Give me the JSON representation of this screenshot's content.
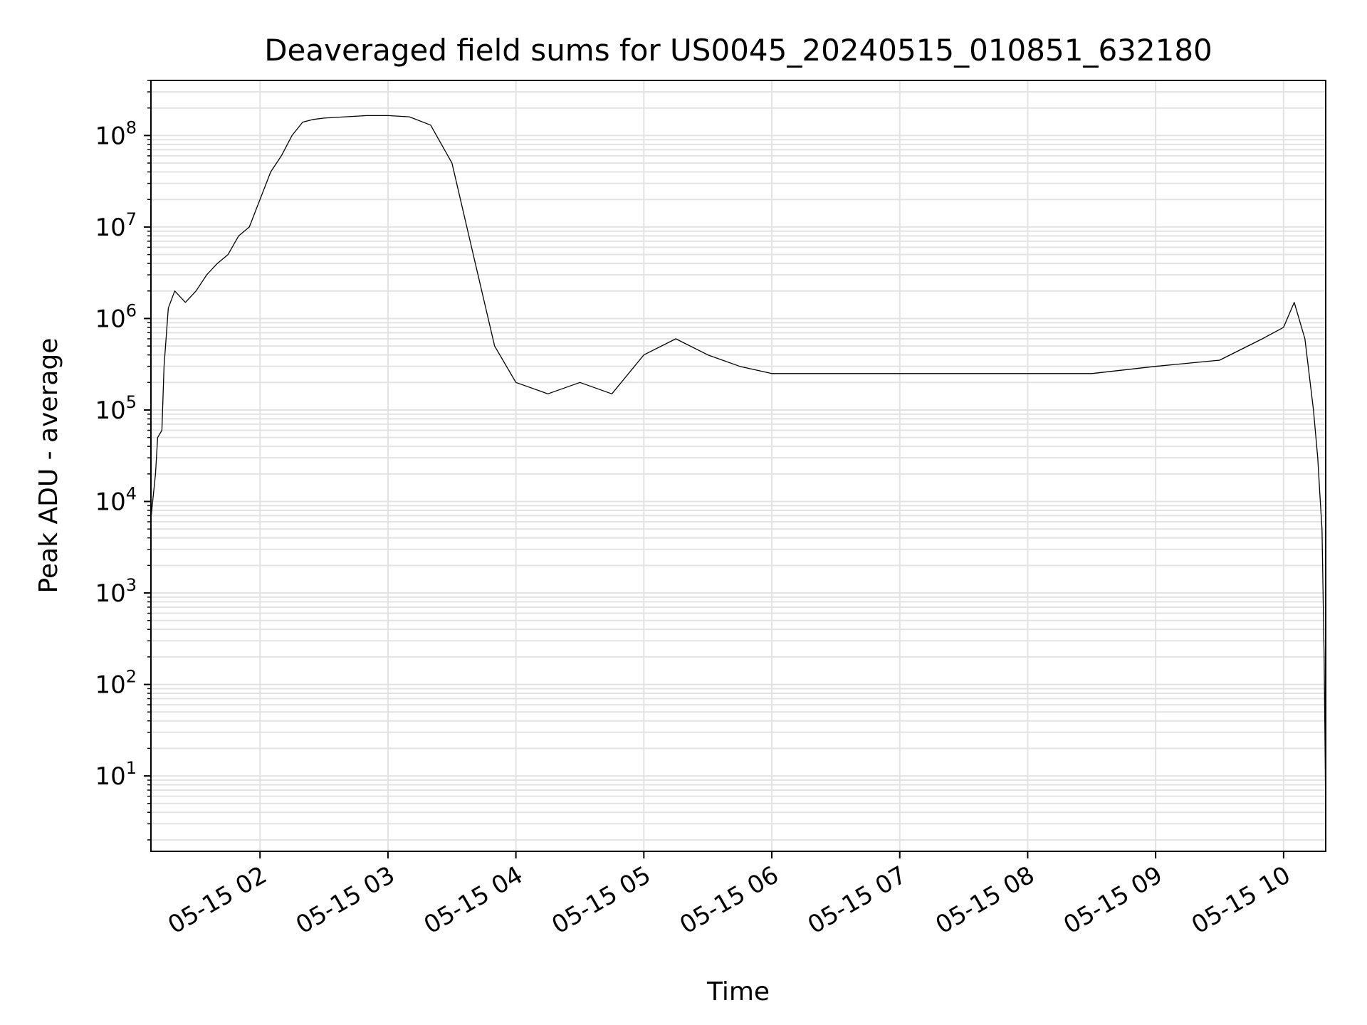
{
  "chart_data": {
    "type": "line",
    "title": "Deaveraged field sums for US0045_20240515_010851_632180",
    "xlabel": "Time",
    "ylabel": "Peak ADU - average",
    "yscale": "log",
    "grid": true,
    "line_color": "#000000",
    "grid_color": "#e3e3e3",
    "xlim": [
      "2024-05-15 01:08:51",
      "2024-05-15 10:19:45"
    ],
    "ylim": [
      1.5,
      400000000
    ],
    "x_ticks": [
      "05-15 02",
      "05-15 03",
      "05-15 04",
      "05-15 05",
      "05-15 06",
      "05-15 07",
      "05-15 08",
      "05-15 09",
      "05-15 10"
    ],
    "y_ticks": [
      {
        "base": "10",
        "exp": "1",
        "value": 10
      },
      {
        "base": "10",
        "exp": "2",
        "value": 100
      },
      {
        "base": "10",
        "exp": "3",
        "value": 1000
      },
      {
        "base": "10",
        "exp": "4",
        "value": 10000
      },
      {
        "base": "10",
        "exp": "5",
        "value": 100000
      },
      {
        "base": "10",
        "exp": "6",
        "value": 1000000
      },
      {
        "base": "10",
        "exp": "7",
        "value": 10000000
      },
      {
        "base": "10",
        "exp": "8",
        "value": 100000000
      }
    ],
    "series": [
      {
        "x": [
          "01:09",
          "01:11",
          "01:12",
          "01:14",
          "01:15",
          "01:17",
          "01:20",
          "01:25",
          "01:30",
          "01:35",
          "01:40",
          "01:45",
          "01:50",
          "01:55",
          "02:00",
          "02:05",
          "02:10",
          "02:15",
          "02:20",
          "02:25",
          "02:30",
          "02:40",
          "02:50",
          "03:00",
          "03:10",
          "03:20",
          "03:30",
          "03:40",
          "03:50",
          "04:00",
          "04:15",
          "04:30",
          "04:45",
          "05:00",
          "05:15",
          "05:30",
          "05:45",
          "06:00",
          "06:30",
          "07:00",
          "07:30",
          "08:00",
          "08:30",
          "09:00",
          "09:30",
          "09:50",
          "10:00",
          "10:05",
          "10:10",
          "10:14",
          "10:16",
          "10:17",
          "10:18",
          "10:19",
          "10:19:45"
        ],
        "y": [
          7000,
          20000,
          50000,
          60000,
          300000,
          1300000,
          2000000,
          1500000,
          2000000,
          3000000,
          4000000,
          5000000,
          8000000,
          10000000,
          20000000,
          40000000,
          60000000,
          100000000,
          140000000,
          150000000,
          155000000,
          160000000,
          165000000,
          165000000,
          160000000,
          130000000,
          50000000,
          5000000,
          500000,
          200000,
          150000,
          200000,
          150000,
          400000,
          600000,
          400000,
          300000,
          250000,
          250000,
          250000,
          250000,
          250000,
          250000,
          300000,
          350000,
          600000,
          800000,
          1500000,
          600000,
          100000,
          30000,
          12000,
          5000,
          200,
          4
        ]
      }
    ]
  }
}
